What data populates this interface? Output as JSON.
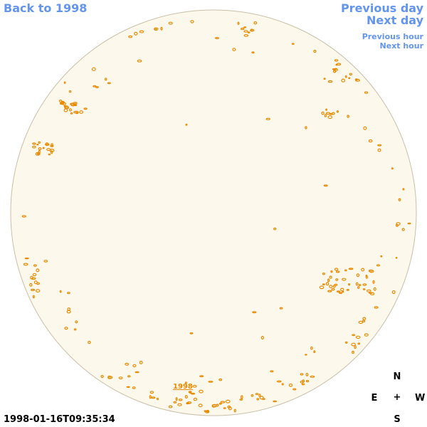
{
  "nav": {
    "back_label": "Back to 1998",
    "previous_day_label": "Previous day",
    "next_day_label": "Next day",
    "previous_hour_label": "Previous hour",
    "next_hour_label": "Next hour"
  },
  "solar_disk": {
    "year_link_label": "1998",
    "disk_color": "#fdf8ec",
    "limb_color": "#c9bfa9",
    "feature_color": "#e88a00"
  },
  "compass": {
    "north": "N",
    "east": "E",
    "center": "+",
    "west": "W",
    "south": "S"
  },
  "timestamp": "1998-01-16T09:35:34",
  "colors": {
    "link": "#6495ed"
  }
}
